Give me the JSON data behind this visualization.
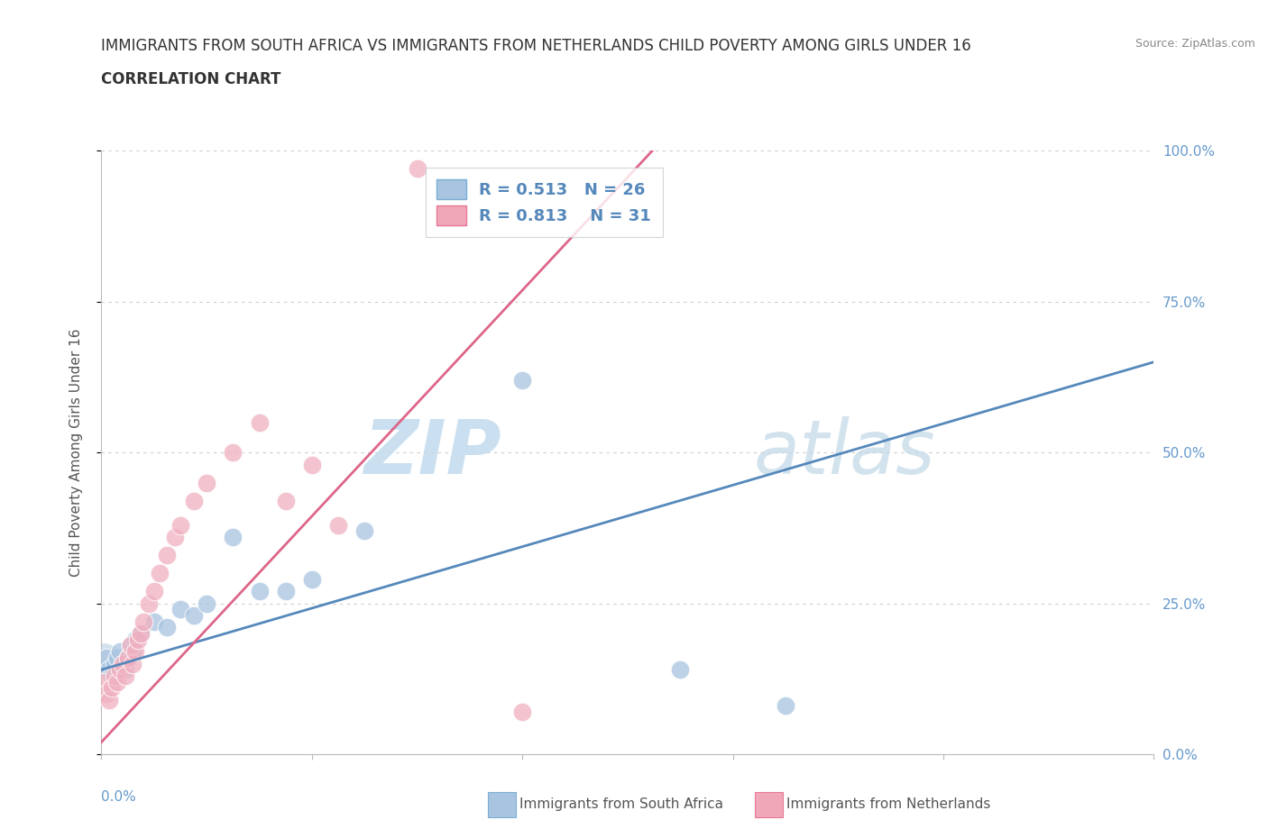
{
  "title_line1": "IMMIGRANTS FROM SOUTH AFRICA VS IMMIGRANTS FROM NETHERLANDS CHILD POVERTY AMONG GIRLS UNDER 16",
  "title_line2": "CORRELATION CHART",
  "source_text": "Source: ZipAtlas.com",
  "ylabel": "Child Poverty Among Girls Under 16",
  "xmin": 0.0,
  "xmax": 0.4,
  "ymin": 0.0,
  "ymax": 1.0,
  "ytick_values": [
    0.0,
    0.25,
    0.5,
    0.75,
    1.0
  ],
  "xtick_values": [
    0.0,
    0.08,
    0.16,
    0.24,
    0.32,
    0.4
  ],
  "watermark_part1": "ZIP",
  "watermark_part2": "atlas",
  "legend_entries": [
    {
      "label": "Immigrants from South Africa",
      "color": "#a8c4e0",
      "border_color": "#7aafd4",
      "R": 0.513,
      "N": 26
    },
    {
      "label": "Immigrants from Netherlands",
      "color": "#f0a8b8",
      "border_color": "#e87898",
      "R": 0.813,
      "N": 31
    }
  ],
  "south_africa_scatter": [
    [
      0.002,
      0.16
    ],
    [
      0.003,
      0.14
    ],
    [
      0.004,
      0.13
    ],
    [
      0.005,
      0.15
    ],
    [
      0.006,
      0.16
    ],
    [
      0.007,
      0.17
    ],
    [
      0.008,
      0.15
    ],
    [
      0.009,
      0.14
    ],
    [
      0.01,
      0.16
    ],
    [
      0.011,
      0.18
    ],
    [
      0.012,
      0.17
    ],
    [
      0.013,
      0.19
    ],
    [
      0.015,
      0.2
    ],
    [
      0.02,
      0.22
    ],
    [
      0.025,
      0.21
    ],
    [
      0.03,
      0.24
    ],
    [
      0.035,
      0.23
    ],
    [
      0.04,
      0.25
    ],
    [
      0.05,
      0.36
    ],
    [
      0.06,
      0.27
    ],
    [
      0.07,
      0.27
    ],
    [
      0.08,
      0.29
    ],
    [
      0.1,
      0.37
    ],
    [
      0.16,
      0.62
    ],
    [
      0.22,
      0.14
    ],
    [
      0.26,
      0.08
    ]
  ],
  "netherlands_scatter": [
    [
      0.001,
      0.12
    ],
    [
      0.002,
      0.1
    ],
    [
      0.003,
      0.09
    ],
    [
      0.004,
      0.11
    ],
    [
      0.005,
      0.13
    ],
    [
      0.006,
      0.12
    ],
    [
      0.007,
      0.14
    ],
    [
      0.008,
      0.15
    ],
    [
      0.009,
      0.13
    ],
    [
      0.01,
      0.16
    ],
    [
      0.011,
      0.18
    ],
    [
      0.012,
      0.15
    ],
    [
      0.013,
      0.17
    ],
    [
      0.014,
      0.19
    ],
    [
      0.015,
      0.2
    ],
    [
      0.016,
      0.22
    ],
    [
      0.018,
      0.25
    ],
    [
      0.02,
      0.27
    ],
    [
      0.022,
      0.3
    ],
    [
      0.025,
      0.33
    ],
    [
      0.028,
      0.36
    ],
    [
      0.03,
      0.38
    ],
    [
      0.035,
      0.42
    ],
    [
      0.04,
      0.45
    ],
    [
      0.05,
      0.5
    ],
    [
      0.06,
      0.55
    ],
    [
      0.07,
      0.42
    ],
    [
      0.08,
      0.48
    ],
    [
      0.09,
      0.38
    ],
    [
      0.12,
      0.97
    ],
    [
      0.16,
      0.07
    ]
  ],
  "sa_line_color": "#5588bb",
  "nl_line_color": "#dd6688",
  "sa_scatter_color": "#a8c4e0",
  "nl_scatter_color": "#f0b0c0",
  "background_color": "#ffffff",
  "grid_color": "#cccccc",
  "title_color": "#333333",
  "axis_color": "#bbbbbb",
  "ylabel_color": "#555555",
  "tick_label_color": "#6699cc",
  "legend_text_color": "#5588bb"
}
